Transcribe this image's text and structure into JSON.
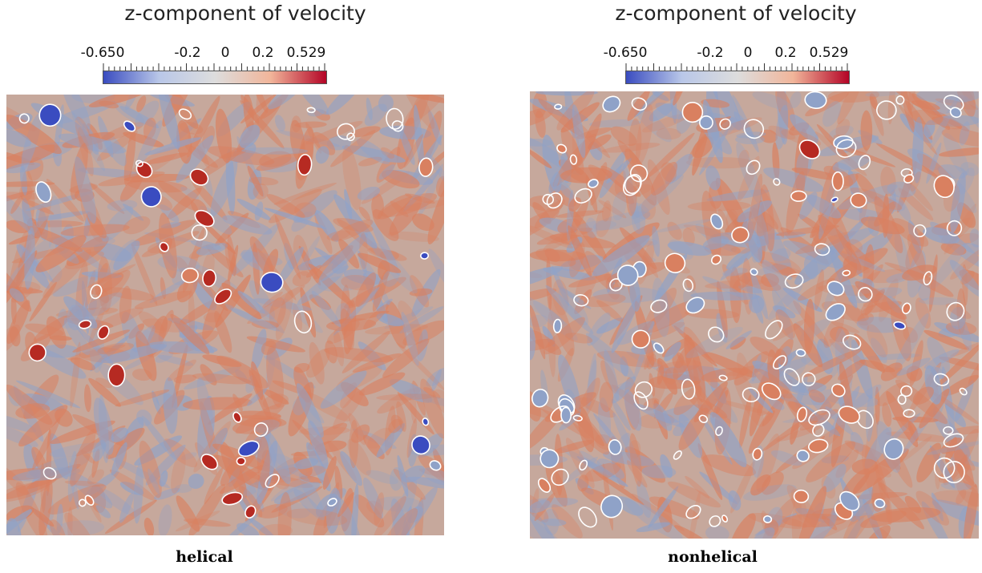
{
  "panels": [
    {
      "id": "left",
      "title": "z-component of velocity",
      "colorbar": {
        "tick_labels": [
          "-0.650",
          "-0.2",
          "0",
          "0.2",
          "0.529"
        ],
        "tick_values": [
          -0.65,
          -0.2,
          0,
          0.2,
          0.529
        ],
        "min": -0.65,
        "max": 0.529,
        "colormap": [
          "#3a4cc0",
          "#b9c7e8",
          "#dddddd",
          "#f1b59a",
          "#b40426"
        ]
      },
      "caption": "helical"
    },
    {
      "id": "right",
      "title": "z-component of velocity",
      "colorbar": {
        "tick_labels": [
          "-0.650",
          "-0.2",
          "0",
          "0.2",
          "0.529"
        ],
        "tick_values": [
          -0.65,
          -0.2,
          0,
          0.2,
          0.529
        ],
        "min": -0.65,
        "max": 0.529,
        "colormap": [
          "#3a4cc0",
          "#b9c7e8",
          "#dddddd",
          "#f1b59a",
          "#b40426"
        ]
      },
      "caption": "nonhelical"
    }
  ],
  "colors": {
    "field_background": "#c6a89c",
    "warm": "#d98060",
    "cool": "#8fa2c8",
    "strong_red": "#b62a22",
    "strong_blue": "#3a4cc0",
    "contour": "#ffffff"
  }
}
